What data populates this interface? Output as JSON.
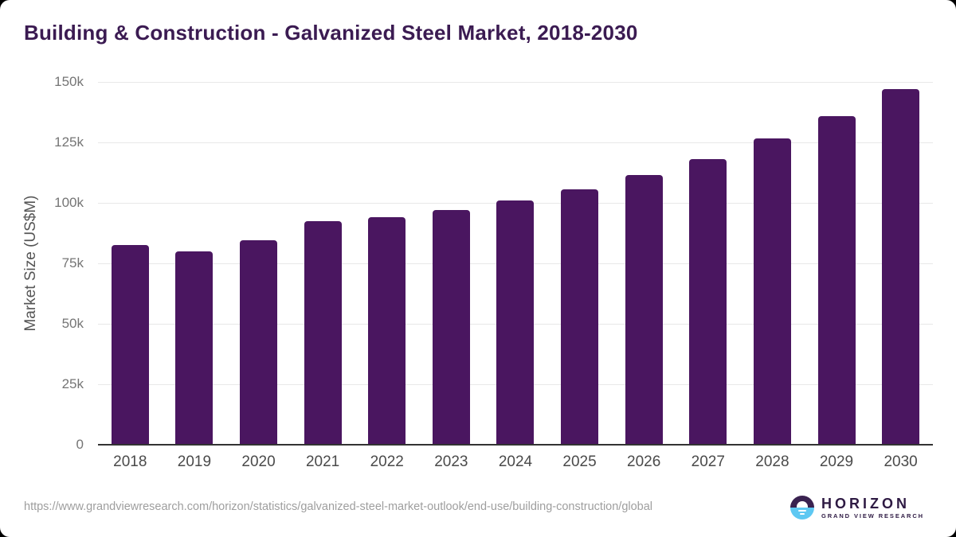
{
  "title": "Building & Construction - Galvanized Steel Market, 2018-2030",
  "chart_data": {
    "type": "bar",
    "title": "Building & Construction - Galvanized Steel Market, 2018-2030",
    "xlabel": "",
    "ylabel": "Market Size (US$M)",
    "categories": [
      "2018",
      "2019",
      "2020",
      "2021",
      "2022",
      "2023",
      "2024",
      "2025",
      "2026",
      "2027",
      "2028",
      "2029",
      "2030"
    ],
    "values": [
      82.5,
      80,
      84.5,
      92.5,
      94,
      97,
      101,
      105.5,
      111.5,
      118,
      126.5,
      136,
      147
    ],
    "ylim": [
      0,
      150
    ],
    "yticks": [
      {
        "value": 0,
        "label": "0"
      },
      {
        "value": 25,
        "label": "25k"
      },
      {
        "value": 50,
        "label": "50k"
      },
      {
        "value": 75,
        "label": "75k"
      },
      {
        "value": 100,
        "label": "100k"
      },
      {
        "value": 125,
        "label": "125k"
      },
      {
        "value": 150,
        "label": "150k"
      }
    ],
    "grid": true,
    "legend": "none",
    "bar_color": "#4a1660"
  },
  "colors": {
    "title": "#3b1b52",
    "bar": "#4a1660",
    "gridline": "#e8e8e8",
    "axis_line": "#333333",
    "ytick_text": "#757575",
    "xtick_text": "#4a4a4a",
    "source_text": "#9e9e9e",
    "logo_purple": "#2e1a43",
    "logo_blue": "#5ec8f2"
  },
  "footer": {
    "source_url": "https://www.grandviewresearch.com/horizon/statistics/galvanized-steel-market-outlook/end-use/building-construction/global",
    "logo": {
      "name": "HORIZON",
      "subtitle": "GRAND VIEW RESEARCH"
    }
  }
}
